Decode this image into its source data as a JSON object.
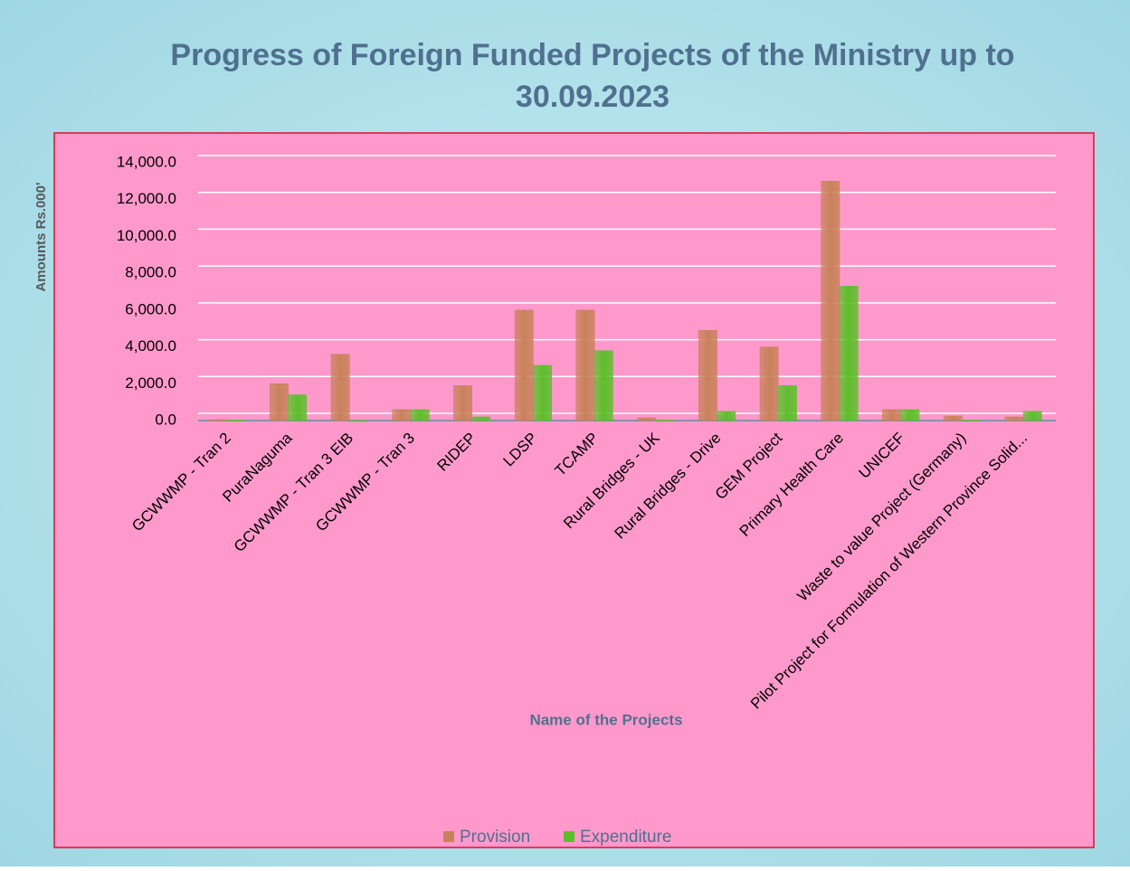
{
  "chart_data": {
    "type": "bar",
    "title": "Progress of Foreign Funded Projects of the Ministry up to 30.09.2023",
    "y_label": "Amounts Rs.000'",
    "x_label": "Name of the Projects",
    "categories": [
      "GCWWMP - Tran 2",
      "PuraNaguma",
      "GCWWMP - Tran 3  EIB",
      "GCWWMP - Tran 3",
      "RIDEP",
      "LDSP",
      "TCAMP",
      "Rural Bridges - UK",
      "Rural Bridges - Drive",
      "GEM Project",
      "Primary Health Care",
      "UNICEF",
      "Waste to value Project (Germany)",
      "Pilot Project for Formulation of Western Province Solid..."
    ],
    "series": [
      {
        "name": "Provision",
        "color": "#c8825a",
        "values": [
          50,
          2000,
          3600,
          600,
          1900,
          6000,
          6000,
          150,
          4900,
          4000,
          13000,
          600,
          250,
          200
        ]
      },
      {
        "name": "Expenditure",
        "color": "#5cbf2a",
        "values": [
          30,
          1400,
          0,
          600,
          200,
          3000,
          3800,
          20,
          500,
          1900,
          7300,
          600,
          20,
          500
        ]
      }
    ],
    "ylim": [
      0,
      14000
    ],
    "yticks": [
      {
        "value": 0,
        "label": "0.0"
      },
      {
        "value": 2000,
        "label": "2,000.0"
      },
      {
        "value": 4000,
        "label": "4,000.0"
      },
      {
        "value": 6000,
        "label": "6,000.0"
      },
      {
        "value": 8000,
        "label": "8,000.0"
      },
      {
        "value": 10000,
        "label": "10,000.0"
      },
      {
        "value": 12000,
        "label": "12,000.0"
      },
      {
        "value": 14000,
        "label": "14,000.0"
      }
    ],
    "grid": true,
    "legend": "bottom"
  }
}
